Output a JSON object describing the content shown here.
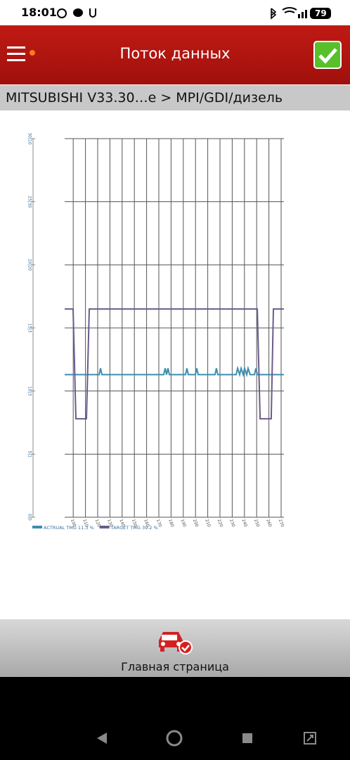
{
  "status_bar": {
    "time": "18:01",
    "battery": "79"
  },
  "header": {
    "title": "Поток данных"
  },
  "breadcrumb": "MITSUBISHI V33.30…e > MPI/GDI/дизель",
  "chart_data": {
    "type": "line",
    "xlim": [
      93,
      272.3
    ],
    "xticks": [
      100,
      110,
      120,
      130,
      140,
      150,
      160,
      170,
      180,
      190,
      200,
      210,
      220,
      230,
      240,
      250,
      260,
      270
    ],
    "ylim": [
      0,
      30
    ],
    "yticks": [
      {
        "value": 0,
        "label": "0|0"
      },
      {
        "value": 5,
        "label": "5|1"
      },
      {
        "value": 10,
        "label": "10|3"
      },
      {
        "value": 15,
        "label": "15|3"
      },
      {
        "value": 20,
        "label": "20|20"
      },
      {
        "value": 25,
        "label": "25|30"
      },
      {
        "value": 30,
        "label": "30|10"
      }
    ],
    "grid": true,
    "series": [
      {
        "name": "ACTRUAL TMG 11.3 %",
        "color": "#3b8db0",
        "x": [
          93.0,
          121.2,
          122.3,
          123.5,
          174.0,
          175.2,
          176.3,
          177.5,
          178.6,
          191.8,
          193.0,
          194.1,
          199.9,
          201.0,
          202.2,
          215.9,
          217.1,
          218.2,
          233.2,
          234.4,
          236.1,
          237.3,
          239.0,
          240.1,
          241.9,
          243.0,
          244.7,
          248.2,
          249.3,
          250.5,
          272.3
        ],
        "values": [
          11.3,
          11.3,
          11.8,
          11.3,
          11.3,
          11.8,
          11.3,
          11.8,
          11.3,
          11.3,
          11.8,
          11.3,
          11.3,
          11.8,
          11.3,
          11.3,
          11.8,
          11.3,
          11.3,
          11.8,
          11.3,
          11.8,
          11.3,
          11.8,
          11.3,
          11.8,
          11.3,
          11.3,
          11.8,
          11.3,
          11.3
        ]
      },
      {
        "name": "TARGET TMG 39.2 %",
        "color": "#6b5b8c",
        "x": [
          93.0,
          99.9,
          102.2,
          110.8,
          113.1,
          250.5,
          252.8,
          261.9,
          263.7,
          272.3
        ],
        "values": [
          16.5,
          16.5,
          7.8,
          7.8,
          16.5,
          16.5,
          7.8,
          7.8,
          16.5,
          16.5
        ]
      }
    ]
  },
  "bottom_bar": {
    "label": "Главная страница"
  }
}
